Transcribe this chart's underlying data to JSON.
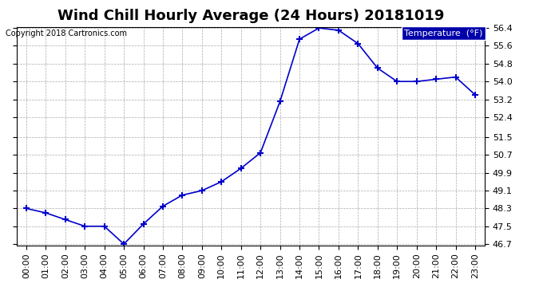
{
  "title": "Wind Chill Hourly Average (24 Hours) 20181019",
  "copyright": "Copyright 2018 Cartronics.com",
  "legend_label": "Temperature  (°F)",
  "hours": [
    "00:00",
    "01:00",
    "02:00",
    "03:00",
    "04:00",
    "05:00",
    "06:00",
    "07:00",
    "08:00",
    "09:00",
    "10:00",
    "11:00",
    "12:00",
    "13:00",
    "14:00",
    "15:00",
    "16:00",
    "17:00",
    "18:00",
    "19:00",
    "20:00",
    "21:00",
    "22:00",
    "23:00"
  ],
  "values": [
    48.3,
    48.1,
    47.8,
    47.5,
    47.5,
    46.7,
    47.6,
    48.4,
    48.9,
    49.1,
    49.5,
    50.1,
    50.8,
    53.1,
    55.9,
    56.4,
    56.3,
    55.7,
    54.6,
    54.0,
    54.0,
    54.1,
    54.2,
    53.4
  ],
  "ylim_min": 46.7,
  "ylim_max": 56.4,
  "yticks": [
    46.7,
    47.5,
    48.3,
    49.1,
    49.9,
    50.7,
    51.5,
    52.4,
    53.2,
    54.0,
    54.8,
    55.6,
    56.4
  ],
  "line_color": "#0000cc",
  "marker": "+",
  "marker_size": 6,
  "background_color": "#ffffff",
  "plot_bg_color": "#ffffff",
  "grid_color": "#aaaaaa",
  "title_fontsize": 13,
  "tick_fontsize": 8,
  "legend_bg_color": "#0000aa",
  "legend_text_color": "#ffffff"
}
